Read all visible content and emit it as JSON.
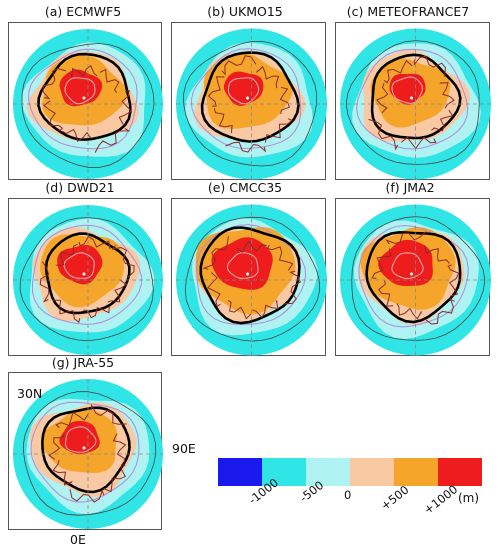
{
  "panels": [
    {
      "title": "(a) ECMWF5"
    },
    {
      "title": "(b) UKMO15"
    },
    {
      "title": "(c) METEOFRANCE7"
    },
    {
      "title": "(d) DWD21"
    },
    {
      "title": "(e) CMCC35"
    },
    {
      "title": "(f) JMA2"
    },
    {
      "title": "(g) JRA-55"
    }
  ],
  "geo_labels": {
    "lat": "30N",
    "lon_east": "90E",
    "lon_zero": "0E"
  },
  "legend": {
    "colors": [
      "#1a1aee",
      "#2fe5e5",
      "#aef2f2",
      "#f8c9a2",
      "#f5a62a",
      "#ee1c1c"
    ],
    "ticks": [
      "-1000",
      "-500",
      "0",
      "+500",
      "+1000"
    ],
    "unit": "(m)"
  }
}
